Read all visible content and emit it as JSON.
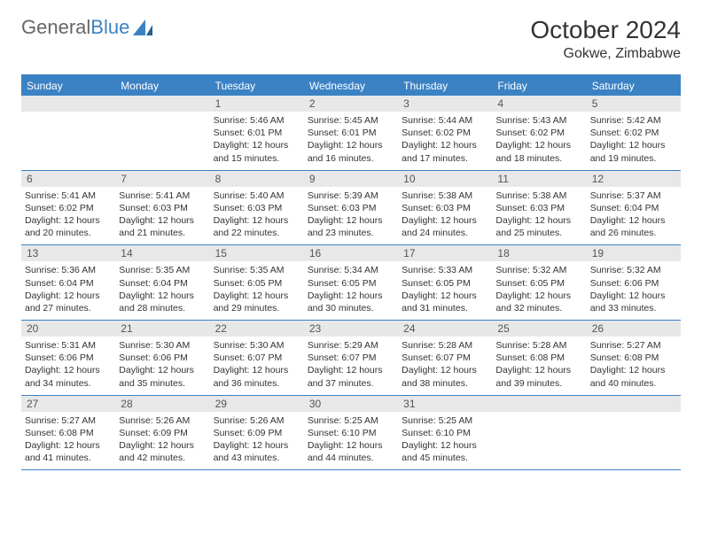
{
  "logo": {
    "textGray": "General",
    "textBlue": "Blue"
  },
  "title": {
    "month": "October 2024",
    "location": "Gokwe, Zimbabwe"
  },
  "colors": {
    "brand": "#3b82c4",
    "headerBg": "#3b82c4",
    "headerText": "#ffffff",
    "dayNumBg": "#e8e8e8",
    "borderColor": "#3b82c4",
    "bodyText": "#333333"
  },
  "dayNames": [
    "Sunday",
    "Monday",
    "Tuesday",
    "Wednesday",
    "Thursday",
    "Friday",
    "Saturday"
  ],
  "weeks": [
    [
      null,
      null,
      {
        "d": "1",
        "sr": "5:46 AM",
        "ss": "6:01 PM",
        "dl": "12 hours and 15 minutes."
      },
      {
        "d": "2",
        "sr": "5:45 AM",
        "ss": "6:01 PM",
        "dl": "12 hours and 16 minutes."
      },
      {
        "d": "3",
        "sr": "5:44 AM",
        "ss": "6:02 PM",
        "dl": "12 hours and 17 minutes."
      },
      {
        "d": "4",
        "sr": "5:43 AM",
        "ss": "6:02 PM",
        "dl": "12 hours and 18 minutes."
      },
      {
        "d": "5",
        "sr": "5:42 AM",
        "ss": "6:02 PM",
        "dl": "12 hours and 19 minutes."
      }
    ],
    [
      {
        "d": "6",
        "sr": "5:41 AM",
        "ss": "6:02 PM",
        "dl": "12 hours and 20 minutes."
      },
      {
        "d": "7",
        "sr": "5:41 AM",
        "ss": "6:03 PM",
        "dl": "12 hours and 21 minutes."
      },
      {
        "d": "8",
        "sr": "5:40 AM",
        "ss": "6:03 PM",
        "dl": "12 hours and 22 minutes."
      },
      {
        "d": "9",
        "sr": "5:39 AM",
        "ss": "6:03 PM",
        "dl": "12 hours and 23 minutes."
      },
      {
        "d": "10",
        "sr": "5:38 AM",
        "ss": "6:03 PM",
        "dl": "12 hours and 24 minutes."
      },
      {
        "d": "11",
        "sr": "5:38 AM",
        "ss": "6:03 PM",
        "dl": "12 hours and 25 minutes."
      },
      {
        "d": "12",
        "sr": "5:37 AM",
        "ss": "6:04 PM",
        "dl": "12 hours and 26 minutes."
      }
    ],
    [
      {
        "d": "13",
        "sr": "5:36 AM",
        "ss": "6:04 PM",
        "dl": "12 hours and 27 minutes."
      },
      {
        "d": "14",
        "sr": "5:35 AM",
        "ss": "6:04 PM",
        "dl": "12 hours and 28 minutes."
      },
      {
        "d": "15",
        "sr": "5:35 AM",
        "ss": "6:05 PM",
        "dl": "12 hours and 29 minutes."
      },
      {
        "d": "16",
        "sr": "5:34 AM",
        "ss": "6:05 PM",
        "dl": "12 hours and 30 minutes."
      },
      {
        "d": "17",
        "sr": "5:33 AM",
        "ss": "6:05 PM",
        "dl": "12 hours and 31 minutes."
      },
      {
        "d": "18",
        "sr": "5:32 AM",
        "ss": "6:05 PM",
        "dl": "12 hours and 32 minutes."
      },
      {
        "d": "19",
        "sr": "5:32 AM",
        "ss": "6:06 PM",
        "dl": "12 hours and 33 minutes."
      }
    ],
    [
      {
        "d": "20",
        "sr": "5:31 AM",
        "ss": "6:06 PM",
        "dl": "12 hours and 34 minutes."
      },
      {
        "d": "21",
        "sr": "5:30 AM",
        "ss": "6:06 PM",
        "dl": "12 hours and 35 minutes."
      },
      {
        "d": "22",
        "sr": "5:30 AM",
        "ss": "6:07 PM",
        "dl": "12 hours and 36 minutes."
      },
      {
        "d": "23",
        "sr": "5:29 AM",
        "ss": "6:07 PM",
        "dl": "12 hours and 37 minutes."
      },
      {
        "d": "24",
        "sr": "5:28 AM",
        "ss": "6:07 PM",
        "dl": "12 hours and 38 minutes."
      },
      {
        "d": "25",
        "sr": "5:28 AM",
        "ss": "6:08 PM",
        "dl": "12 hours and 39 minutes."
      },
      {
        "d": "26",
        "sr": "5:27 AM",
        "ss": "6:08 PM",
        "dl": "12 hours and 40 minutes."
      }
    ],
    [
      {
        "d": "27",
        "sr": "5:27 AM",
        "ss": "6:08 PM",
        "dl": "12 hours and 41 minutes."
      },
      {
        "d": "28",
        "sr": "5:26 AM",
        "ss": "6:09 PM",
        "dl": "12 hours and 42 minutes."
      },
      {
        "d": "29",
        "sr": "5:26 AM",
        "ss": "6:09 PM",
        "dl": "12 hours and 43 minutes."
      },
      {
        "d": "30",
        "sr": "5:25 AM",
        "ss": "6:10 PM",
        "dl": "12 hours and 44 minutes."
      },
      {
        "d": "31",
        "sr": "5:25 AM",
        "ss": "6:10 PM",
        "dl": "12 hours and 45 minutes."
      },
      null,
      null
    ]
  ],
  "labels": {
    "sunrise": "Sunrise:",
    "sunset": "Sunset:",
    "daylight": "Daylight:"
  }
}
